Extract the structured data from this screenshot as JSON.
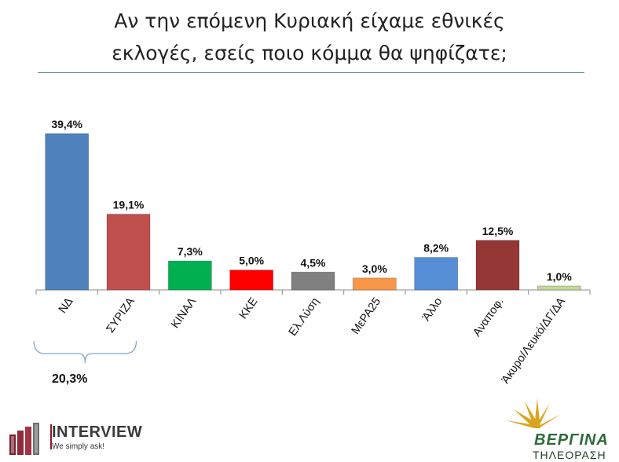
{
  "title_lines": [
    "Αν την επόμενη Κυριακή είχαμε εθνικές",
    "εκλογές, εσείς ποιο κόμμα θα ψηφίζατε;"
  ],
  "chart_data": {
    "type": "bar",
    "title": "Αν την επόμενη Κυριακή είχαμε εθνικές εκλογές, εσείς ποιο κόμμα θα ψηφίζατε;",
    "categories": [
      "ΝΔ",
      "ΣΥΡΙΖΑ",
      "ΚΙΝΑΛ",
      "ΚΚΕ",
      "Ελ.Λύση",
      "ΜεΡΑ25",
      "Άλλο",
      "Αναποφ.",
      "Άκυρο/Λευκό/ΔΓ/ΔΑ"
    ],
    "values": [
      39.4,
      19.1,
      7.3,
      5.0,
      4.5,
      3.0,
      8.2,
      12.5,
      1.0
    ],
    "value_labels": [
      "39,4%",
      "19,1%",
      "7,3%",
      "5,0%",
      "4,5%",
      "3,0%",
      "8,2%",
      "12,5%",
      "1,0%"
    ],
    "colors": [
      "#4f81bd",
      "#c0504d",
      "#00b050",
      "#ff0000",
      "#808080",
      "#f79646",
      "#558ed5",
      "#953735",
      "#c3d69b"
    ],
    "ylim": [
      0,
      39.4
    ],
    "grid": false,
    "annotation": {
      "text": "20,3%",
      "spans": [
        "ΝΔ",
        "ΣΥΡΙΖΑ"
      ]
    }
  },
  "logos": {
    "left_brand": "INTERVIEW",
    "left_tagline": "We simply ask!",
    "right_name": "ΒΕΡΓΙΝΑ",
    "right_sub": "ΤΗΛΕΟΡΑΣΗ"
  }
}
